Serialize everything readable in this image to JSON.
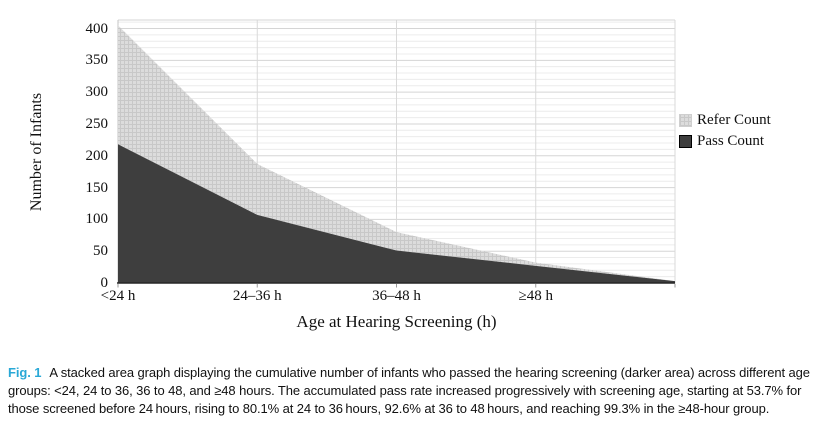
{
  "figure": {
    "caption_label": "Fig. 1",
    "caption_label_color": "#29a8d6",
    "caption_text": "A stacked area graph displaying the cumulative number of infants who passed the hearing screening (darker area) across different age groups: <24, 24 to 36, 36 to 48, and ≥48 hours. The accumulated pass rate increased progressively with screening age, starting at 53.7% for those screened before 24 hours, rising to 80.1% at 24 to 36 hours, 92.6% at 36 to 48 hours, and reaching 99.3% in the ≥48-hour group."
  },
  "chart_data": {
    "type": "area",
    "stacked": true,
    "title": "",
    "xlabel": "Age at Hearing Screening (h)",
    "ylabel": "Number of Infants",
    "categories": [
      "<24 h",
      "24–36 h",
      "36–48 h",
      "≥48 h",
      ""
    ],
    "series": [
      {
        "name": "Pass Count",
        "values": [
          218,
          107,
          51,
          27,
          3
        ],
        "color": "#3e3e3e"
      },
      {
        "name": "Refer Count",
        "values": [
          187,
          80,
          29,
          5,
          0
        ],
        "color": "#dcdcdc"
      }
    ],
    "stack_totals": [
      405,
      187,
      80,
      32,
      3
    ],
    "ylim": [
      0,
      400
    ],
    "y_ticks": [
      0,
      50,
      100,
      150,
      200,
      250,
      300,
      350,
      400
    ],
    "y_minor_step": 10,
    "grid": true,
    "legend_position": "right",
    "legend": [
      {
        "label": "Refer Count",
        "color": "#dcdcdc"
      },
      {
        "label": "Pass Count",
        "color": "#3e3e3e"
      }
    ],
    "pass_rates_noted": [
      "53.7%",
      "80.1%",
      "92.6%",
      "99.3%"
    ]
  }
}
